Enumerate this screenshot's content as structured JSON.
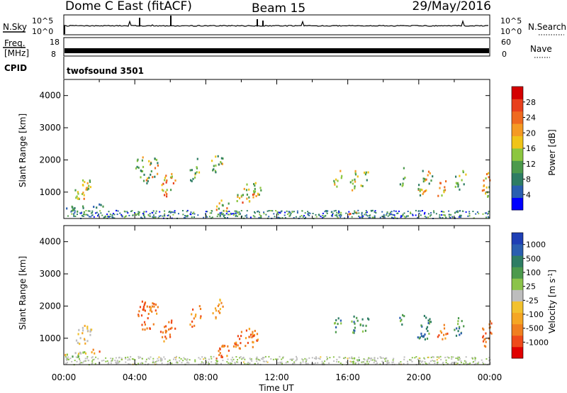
{
  "header": {
    "title": "Dome C East (fitACF)",
    "beam": "Beam 15",
    "date": "29/May/2016"
  },
  "top_panels": {
    "nsky_label": "N.Sky",
    "nsearch_label": "N.Search",
    "nsky_ticks": [
      "10^5",
      "10^0"
    ],
    "nsearch_ticks": [
      "10^5",
      "10^0"
    ],
    "freq_label": "Freq.",
    "freq_unit": "[MHz]",
    "freq_ticks": [
      "18",
      "8"
    ],
    "nave_label": "Nave",
    "nave_ticks": [
      "60",
      "0"
    ],
    "cpid_label": "CPID",
    "cpid_value": "twofsound 3501"
  },
  "chart_data": [
    {
      "type": "heatmap",
      "name": "power",
      "ylabel": "Slant Range [km]",
      "yticks": [
        "4000",
        "3000",
        "2000",
        "1000"
      ],
      "ylim": [
        180,
        4500
      ],
      "xlim": [
        0,
        24
      ],
      "colorbar_label": "Power [dB]",
      "colorbar_ticks": [
        "28",
        "24",
        "20",
        "16",
        "12",
        "8",
        "4"
      ],
      "colors": [
        "#0000ff",
        "#2a5fb0",
        "#2e7d64",
        "#4c9a4c",
        "#8cc63f",
        "#f0c419",
        "#f59a23",
        "#ef6a1f",
        "#e8401c",
        "#d40000"
      ],
      "blobs": [
        {
          "t": 1.05,
          "r": 1100,
          "dt": 0.5,
          "dr": 320,
          "lv": [
            0.3,
            0.75
          ]
        },
        {
          "t": 1.9,
          "r": 630,
          "dt": 0.45,
          "dr": 90,
          "lv": [
            0.1,
            0.35
          ]
        },
        {
          "t": 0.6,
          "r": 520,
          "dt": 0.6,
          "dr": 120,
          "lv": [
            0.1,
            0.4
          ]
        },
        {
          "t": 4.8,
          "r": 1700,
          "dt": 0.55,
          "dr": 420,
          "lv": [
            0.2,
            0.8
          ]
        },
        {
          "t": 5.8,
          "r": 1250,
          "dt": 0.45,
          "dr": 350,
          "lv": [
            0.3,
            0.9
          ]
        },
        {
          "t": 4.3,
          "r": 1950,
          "dt": 0.3,
          "dr": 250,
          "lv": [
            0.2,
            0.7
          ]
        },
        {
          "t": 7.4,
          "r": 1700,
          "dt": 0.35,
          "dr": 350,
          "lv": [
            0.2,
            0.6
          ]
        },
        {
          "t": 8.6,
          "r": 1950,
          "dt": 0.35,
          "dr": 300,
          "lv": [
            0.2,
            0.7
          ]
        },
        {
          "t": 8.9,
          "r": 550,
          "dt": 0.4,
          "dr": 250,
          "lv": [
            0.3,
            0.8
          ]
        },
        {
          "t": 10.3,
          "r": 1000,
          "dt": 0.85,
          "dr": 320,
          "lv": [
            0.3,
            0.85
          ]
        },
        {
          "t": 15.4,
          "r": 1450,
          "dt": 0.25,
          "dr": 250,
          "lv": [
            0.2,
            0.7
          ]
        },
        {
          "t": 16.3,
          "r": 1400,
          "dt": 0.25,
          "dr": 300,
          "lv": [
            0.2,
            0.7
          ]
        },
        {
          "t": 16.9,
          "r": 1450,
          "dt": 0.25,
          "dr": 250,
          "lv": [
            0.2,
            0.6
          ]
        },
        {
          "t": 16.3,
          "r": 350,
          "dt": 0.35,
          "dr": 60,
          "lv": [
            0.4,
            0.9
          ]
        },
        {
          "t": 19.0,
          "r": 1500,
          "dt": 0.2,
          "dr": 300,
          "lv": [
            0.2,
            0.5
          ]
        },
        {
          "t": 20.3,
          "r": 1350,
          "dt": 0.45,
          "dr": 400,
          "lv": [
            0.2,
            0.8
          ]
        },
        {
          "t": 21.3,
          "r": 1150,
          "dt": 0.3,
          "dr": 300,
          "lv": [
            0.3,
            0.85
          ]
        },
        {
          "t": 22.3,
          "r": 1400,
          "dt": 0.35,
          "dr": 350,
          "lv": [
            0.2,
            0.6
          ]
        },
        {
          "t": 23.8,
          "r": 1200,
          "dt": 0.3,
          "dr": 450,
          "lv": [
            0.3,
            0.85
          ]
        }
      ],
      "ground_band": {
        "r": [
          200,
          450
        ],
        "t": [
          0,
          24
        ],
        "lv": [
          0.05,
          0.45
        ]
      }
    },
    {
      "type": "heatmap",
      "name": "velocity",
      "ylabel": "Slant Range [km]",
      "yticks": [
        "4000",
        "3000",
        "2000",
        "1000"
      ],
      "ylim": [
        180,
        4500
      ],
      "xlim": [
        0,
        24
      ],
      "xticks": [
        "00:00",
        "04:00",
        "08:00",
        "12:00",
        "16:00",
        "20:00",
        "00:00"
      ],
      "xlabel": "Time UT",
      "colorbar_label": "Velocity [m s",
      "colorbar_unit_sup": "-1",
      "colorbar_ticks": [
        "1000",
        "500",
        "100",
        "25",
        "-25",
        "-100",
        "-500",
        "-1000"
      ],
      "colors": [
        "#e00000",
        "#ef4a1a",
        "#f07f1f",
        "#f5a623",
        "#f2c12e",
        "#bdbdbd",
        "#8bc34a",
        "#4c9a4c",
        "#2e7d64",
        "#2a5fb0",
        "#1e3fb5"
      ],
      "blobs": [
        {
          "t": 1.05,
          "r": 1100,
          "dt": 0.5,
          "dr": 320,
          "lv": [
            0.3,
            0.55
          ]
        },
        {
          "t": 1.9,
          "r": 630,
          "dt": 0.45,
          "dr": 90,
          "lv": [
            0.15,
            0.35
          ]
        },
        {
          "t": 0.6,
          "r": 520,
          "dt": 0.6,
          "dr": 120,
          "lv": [
            0.3,
            0.65
          ]
        },
        {
          "t": 4.8,
          "r": 1700,
          "dt": 0.55,
          "dr": 420,
          "lv": [
            0.1,
            0.3
          ]
        },
        {
          "t": 5.8,
          "r": 1250,
          "dt": 0.45,
          "dr": 350,
          "lv": [
            0.1,
            0.3
          ]
        },
        {
          "t": 4.3,
          "r": 1950,
          "dt": 0.3,
          "dr": 250,
          "lv": [
            0.1,
            0.3
          ]
        },
        {
          "t": 7.4,
          "r": 1700,
          "dt": 0.35,
          "dr": 350,
          "lv": [
            0.1,
            0.35
          ]
        },
        {
          "t": 8.6,
          "r": 1950,
          "dt": 0.35,
          "dr": 300,
          "lv": [
            0.2,
            0.45
          ]
        },
        {
          "t": 8.9,
          "r": 550,
          "dt": 0.4,
          "dr": 250,
          "lv": [
            0.1,
            0.3
          ]
        },
        {
          "t": 10.3,
          "r": 1000,
          "dt": 0.85,
          "dr": 320,
          "lv": [
            0.1,
            0.3
          ]
        },
        {
          "t": 15.4,
          "r": 1450,
          "dt": 0.25,
          "dr": 250,
          "lv": [
            0.6,
            0.85
          ]
        },
        {
          "t": 16.3,
          "r": 1400,
          "dt": 0.25,
          "dr": 300,
          "lv": [
            0.6,
            0.85
          ]
        },
        {
          "t": 16.9,
          "r": 1450,
          "dt": 0.25,
          "dr": 250,
          "lv": [
            0.6,
            0.85
          ]
        },
        {
          "t": 16.3,
          "r": 350,
          "dt": 0.35,
          "dr": 60,
          "lv": [
            0.55,
            0.75
          ]
        },
        {
          "t": 19.0,
          "r": 1500,
          "dt": 0.2,
          "dr": 300,
          "lv": [
            0.6,
            0.85
          ]
        },
        {
          "t": 20.3,
          "r": 1350,
          "dt": 0.45,
          "dr": 400,
          "lv": [
            0.6,
            0.9
          ]
        },
        {
          "t": 21.3,
          "r": 1150,
          "dt": 0.3,
          "dr": 300,
          "lv": [
            0.1,
            0.3
          ]
        },
        {
          "t": 22.3,
          "r": 1400,
          "dt": 0.35,
          "dr": 350,
          "lv": [
            0.6,
            0.85
          ]
        },
        {
          "t": 23.8,
          "r": 1200,
          "dt": 0.3,
          "dr": 450,
          "lv": [
            0.1,
            0.3
          ]
        }
      ],
      "ground_band": {
        "r": [
          200,
          450
        ],
        "t": [
          0,
          24
        ],
        "lv": [
          0.45,
          0.6
        ]
      }
    }
  ]
}
